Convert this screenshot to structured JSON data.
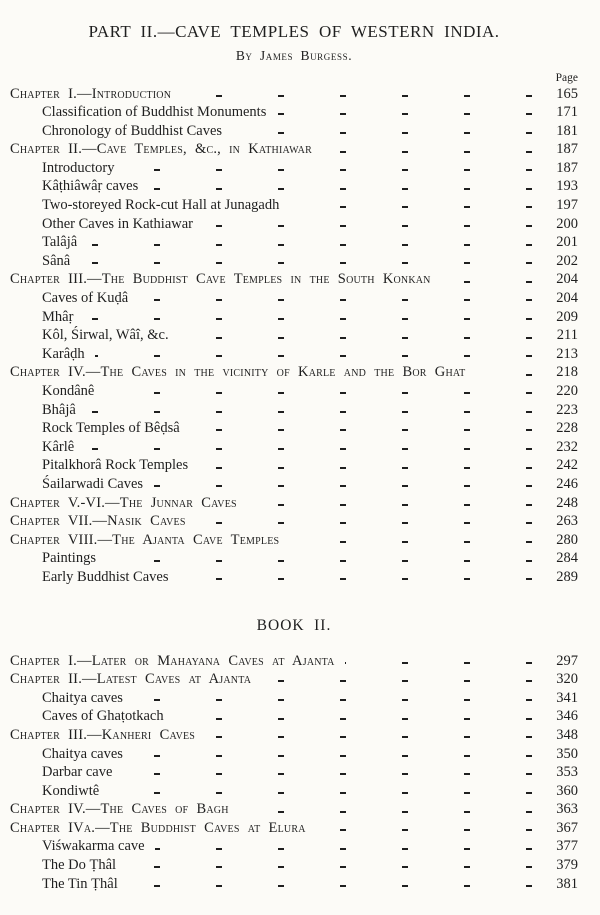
{
  "colors": {
    "paper": "#fcfbf7",
    "ink": "#1f1f1f"
  },
  "header": {
    "part_title": "PART II.—CAVE TEMPLES OF WESTERN INDIA.",
    "byline": "By James Burgess.",
    "page_column_label": "Page"
  },
  "books": [
    {
      "entries": [
        {
          "level": "chapter",
          "label": "Chapter I.—Introduction",
          "page": "165"
        },
        {
          "level": "sub",
          "label": "Classification of Buddhist Monuments",
          "page": "171"
        },
        {
          "level": "sub",
          "label": "Chronology of Buddhist Caves",
          "page": "181"
        },
        {
          "level": "chapter",
          "label": "Chapter II.—Cave Temples, &c., in Kathiawar",
          "page": "187"
        },
        {
          "level": "sub",
          "label": "Introductory",
          "page": "187"
        },
        {
          "level": "sub",
          "label": "Kâṭhiâwâṛ caves",
          "page": "193"
        },
        {
          "level": "sub",
          "label": "Two-storeyed Rock-cut Hall at Junagadh",
          "page": "197"
        },
        {
          "level": "sub",
          "label": "Other Caves in Kathiawar",
          "page": "200"
        },
        {
          "level": "sub",
          "label": "Talâjâ",
          "page": "201"
        },
        {
          "level": "sub",
          "label": "Sânâ",
          "page": "202"
        },
        {
          "level": "chapter",
          "label": "Chapter III.—The Buddhist Cave Temples in the South Konkan",
          "page": "204"
        },
        {
          "level": "sub",
          "label": "Caves of Kuḍâ",
          "page": "204"
        },
        {
          "level": "sub",
          "label": "Mhâṛ",
          "page": "209"
        },
        {
          "level": "sub",
          "label": "Kôl, Śirwal, Wâî, &c.",
          "page": "211"
        },
        {
          "level": "sub",
          "label": "Karâḍh",
          "page": "213"
        },
        {
          "level": "chapter",
          "label": "Chapter IV.—The Caves in the vicinity of Karle and the Bor Ghat",
          "page": "218"
        },
        {
          "level": "sub",
          "label": "Kondânê",
          "page": "220"
        },
        {
          "level": "sub",
          "label": "Bhâjâ",
          "page": "223"
        },
        {
          "level": "sub",
          "label": "Rock Temples of Bêḍsâ",
          "page": "228"
        },
        {
          "level": "sub",
          "label": "Kârlê",
          "page": "232"
        },
        {
          "level": "sub",
          "label": "Pitalkhorâ Rock Temples",
          "page": "242"
        },
        {
          "level": "sub",
          "label": "Śailarwadi Caves",
          "page": "246"
        },
        {
          "level": "chapter",
          "label": "Chapter V.-VI.—The Junnar Caves",
          "page": "248"
        },
        {
          "level": "chapter",
          "label": "Chapter VII.—Nasik Caves",
          "page": "263"
        },
        {
          "level": "chapter",
          "label": "Chapter VIII.—The Ajanta Cave Temples",
          "page": "280"
        },
        {
          "level": "sub",
          "label": "Paintings",
          "page": "284"
        },
        {
          "level": "sub",
          "label": "Early Buddhist Caves",
          "page": "289"
        }
      ]
    },
    {
      "heading": "BOOK II.",
      "entries": [
        {
          "level": "chapter",
          "label": "Chapter I.—Later or Mahayana Caves at Ajanta",
          "page": "297"
        },
        {
          "level": "chapter",
          "label": "Chapter II.—Latest Caves at Ajanta",
          "page": "320"
        },
        {
          "level": "sub",
          "label": "Chaitya caves",
          "page": "341"
        },
        {
          "level": "sub",
          "label": "Caves of Ghaṭotkach",
          "page": "346"
        },
        {
          "level": "chapter",
          "label": "Chapter III.—Kanheri Caves",
          "page": "348"
        },
        {
          "level": "sub",
          "label": "Chaitya caves",
          "page": "350"
        },
        {
          "level": "sub",
          "label": "Darbar cave",
          "page": "353"
        },
        {
          "level": "sub",
          "label": "Kondiwtê",
          "page": "360"
        },
        {
          "level": "chapter",
          "label": "Chapter IV.—The Caves of Bagh",
          "page": "363"
        },
        {
          "level": "chapter",
          "label": "Chapter IVa.—The Buddhist Caves at Elura",
          "page": "367"
        },
        {
          "level": "sub",
          "label": "Viśwakarma cave",
          "page": "377"
        },
        {
          "level": "sub",
          "label": "The Do Ṭhâl",
          "page": "379"
        },
        {
          "level": "sub",
          "label": "The Tin Ṭhâl",
          "page": "381"
        }
      ]
    }
  ]
}
